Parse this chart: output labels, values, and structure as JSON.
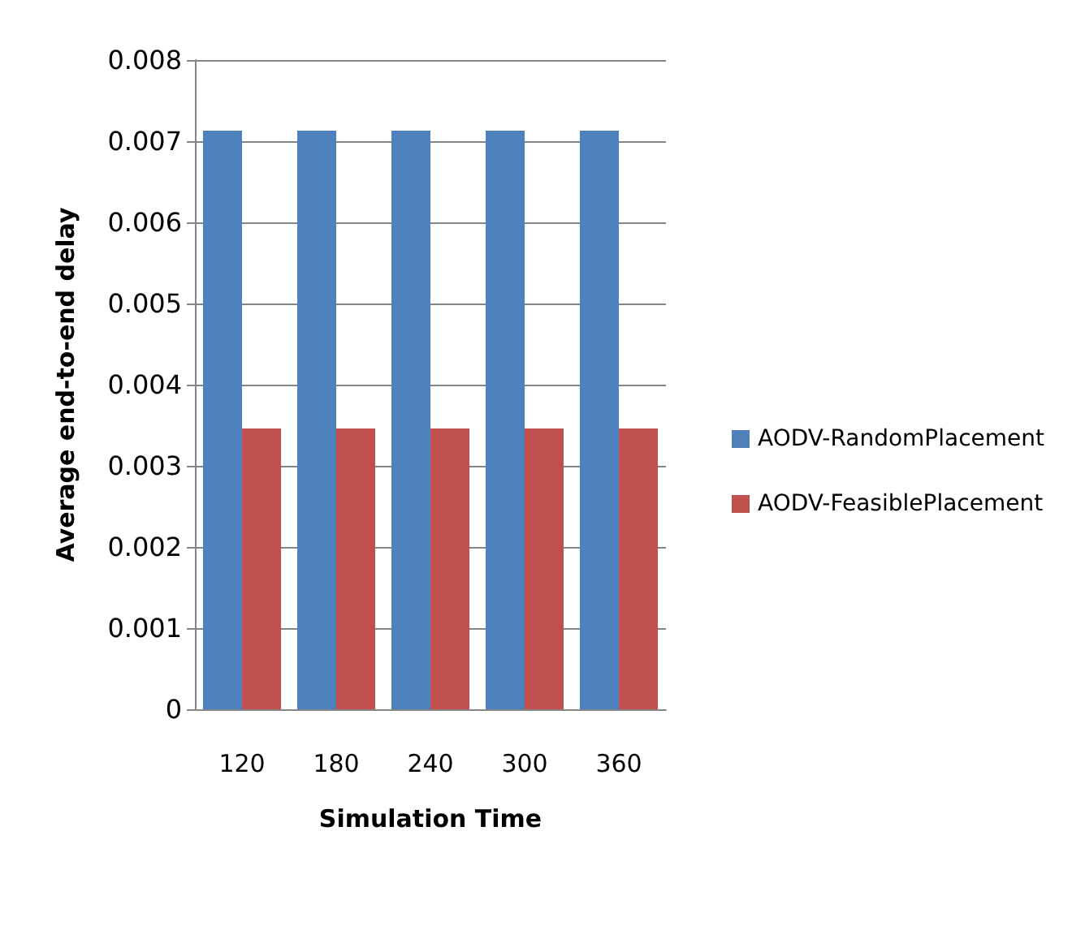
{
  "chart_data": {
    "type": "bar",
    "xlabel": "Simulation Time",
    "ylabel": "Average end-to-end delay",
    "categories": [
      "120",
      "180",
      "240",
      "300",
      "360"
    ],
    "series": [
      {
        "name": "AODV-RandomPlacement",
        "color": "#4f81bd",
        "values": [
          0.00713,
          0.00713,
          0.00713,
          0.00713,
          0.00713
        ]
      },
      {
        "name": "AODV-FeasiblePlacement",
        "color": "#c0504d",
        "values": [
          0.00346,
          0.00346,
          0.00346,
          0.00346,
          0.00346
        ]
      }
    ],
    "ylim": [
      0,
      0.008
    ],
    "yticks": [
      0,
      0.001,
      0.002,
      0.003,
      0.004,
      0.005,
      0.006,
      0.007,
      0.008
    ],
    "grid": "y",
    "legend": "right"
  }
}
